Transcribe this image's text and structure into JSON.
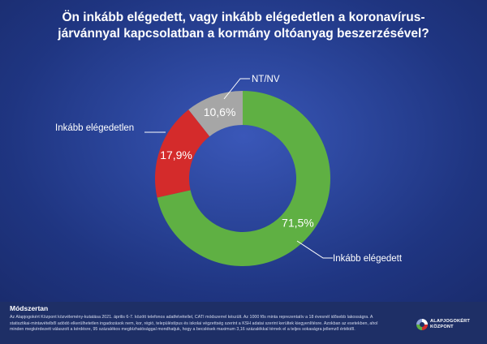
{
  "header": {
    "title": "Ön inkább elégedett, vagy inkább elégedetlen a koronavírus-járvánnyal kapcsolatban a kormány oltóanyag beszerzésével?"
  },
  "chart_data": {
    "type": "pie",
    "donut": true,
    "slices": [
      {
        "label": "Inkább elégedett",
        "value": 71.5,
        "value_label": "71,5%",
        "color": "#5fb043"
      },
      {
        "label": "Inkább elégedetlen",
        "value": 17.9,
        "value_label": "17,9%",
        "color": "#d42b2b"
      },
      {
        "label": "NT/NV",
        "value": 10.6,
        "value_label": "10,6%",
        "color": "#a6a6a6"
      }
    ],
    "start_angle_deg": 0,
    "direction": "clockwise"
  },
  "methodology": {
    "heading": "Módszertan",
    "text": "Az Alapjogokért Központ közvélemény-kutatása 2021. április 6-7. között telefonos adatfelvétellel, CATI módszerrel készült. Az 1000 fős minta reprezentatív a 18 évesnél idősebb lakosságra. A statisztikai-mintavételből adódó elkerülhetetlen ingadozások nem, kor, régió, településtípus és iskolai végzettség szerint a KSH adatai szerint kerültek kiegyenlítésre. Azokban az esetekben, ahol minden megkérdezett válaszolt a kérdésre, 95 százalékos megbízhatósággal mondhatjuk, hogy a becslések maximum 3,16 százalékkal térnek el a teljes sokaságra jellemző értéktől."
  },
  "logo": {
    "line1": "ALAPJOGOKÉRT",
    "line2": "KÖZPONT"
  }
}
